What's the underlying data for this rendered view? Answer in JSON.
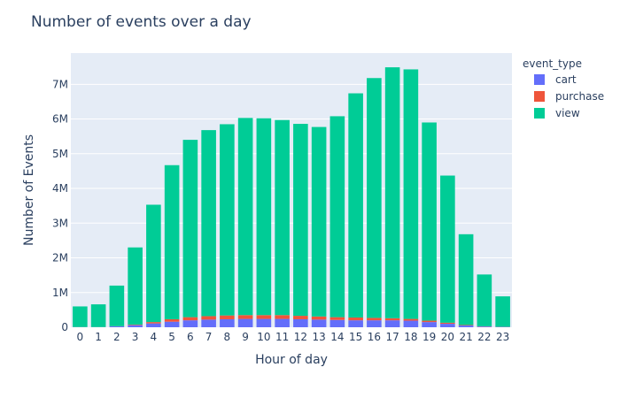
{
  "chart_data": {
    "type": "bar",
    "stacked": true,
    "title": "Number of events over a day",
    "xlabel": "Hour of day",
    "ylabel": "Number of Events",
    "categories": [
      "0",
      "1",
      "2",
      "3",
      "4",
      "5",
      "6",
      "7",
      "8",
      "9",
      "10",
      "11",
      "12",
      "13",
      "14",
      "15",
      "16",
      "17",
      "18",
      "19",
      "20",
      "21",
      "22",
      "23"
    ],
    "ylim": [
      0,
      7900000
    ],
    "yticks": [
      0,
      1000000,
      2000000,
      3000000,
      4000000,
      5000000,
      6000000,
      7000000
    ],
    "ytick_labels": [
      "0",
      "1M",
      "2M",
      "3M",
      "4M",
      "5M",
      "6M",
      "7M"
    ],
    "grid": true,
    "legend_position": "top-right",
    "legend_title": "event_type",
    "series": [
      {
        "name": "cart",
        "color": "#636efa",
        "values": [
          5000,
          4000,
          25000,
          60000,
          110000,
          160000,
          200000,
          220000,
          230000,
          240000,
          240000,
          240000,
          230000,
          220000,
          210000,
          200000,
          200000,
          200000,
          190000,
          150000,
          100000,
          50000,
          20000,
          10000
        ]
      },
      {
        "name": "purchase",
        "color": "#ef553b",
        "values": [
          2000,
          2000,
          5000,
          15000,
          40000,
          70000,
          90000,
          100000,
          110000,
          110000,
          110000,
          110000,
          100000,
          90000,
          80000,
          80000,
          70000,
          60000,
          50000,
          40000,
          30000,
          15000,
          8000,
          4000
        ]
      },
      {
        "name": "view",
        "color": "#00cc96",
        "values": [
          593000,
          654000,
          1170000,
          2225000,
          3380000,
          4440000,
          5110000,
          5360000,
          5510000,
          5680000,
          5670000,
          5620000,
          5530000,
          5460000,
          5790000,
          6460000,
          6910000,
          7230000,
          7190000,
          5710000,
          4240000,
          2615000,
          1492000,
          876000
        ]
      }
    ]
  }
}
